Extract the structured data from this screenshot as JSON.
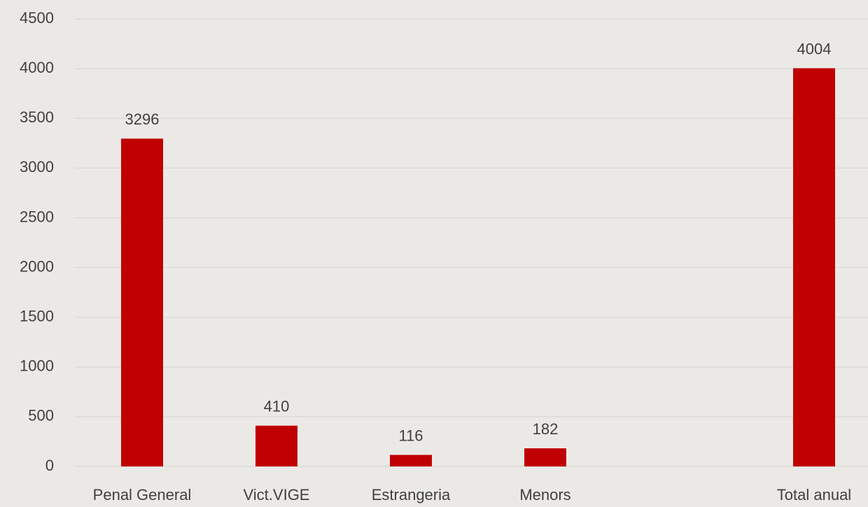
{
  "chart_data": {
    "type": "bar",
    "categories": [
      "Penal General",
      "Vict.VIGE",
      "Estrangeria",
      "Menors",
      null,
      "Total anual"
    ],
    "values": [
      3296,
      410,
      116,
      182,
      null,
      4004
    ],
    "color": "#c00000",
    "ylim": [
      0,
      4500
    ],
    "yticks": [
      0,
      500,
      1000,
      1500,
      2000,
      2500,
      3000,
      3500,
      4000,
      4500
    ],
    "grid": true
  }
}
